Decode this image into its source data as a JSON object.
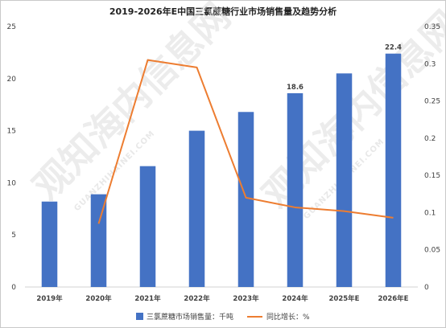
{
  "chart_data": {
    "type": "bar",
    "title": "2019-2026年E中国三氯蔗糖行业市场销售量及趋势分析",
    "categories": [
      "2019年",
      "2020年",
      "2021年",
      "2022年",
      "2023年",
      "2024年",
      "2025年E",
      "2026年E"
    ],
    "series": [
      {
        "name": "三氯蔗糖市场销售量：千吨",
        "type": "bar",
        "axis": "left",
        "color": "#4472c4",
        "values": [
          8.2,
          8.9,
          11.6,
          15.0,
          16.8,
          18.6,
          20.5,
          22.4
        ]
      },
      {
        "name": "同比增长：%",
        "type": "line",
        "axis": "right",
        "color": "#ed7d31",
        "values": [
          null,
          0.085,
          0.305,
          0.295,
          0.12,
          0.107,
          0.102,
          0.093
        ]
      }
    ],
    "data_labels": [
      {
        "index": 5,
        "text": "18.6"
      },
      {
        "index": 7,
        "text": "22.4"
      }
    ],
    "y_left": {
      "min": 0,
      "max": 25,
      "ticks": [
        "0",
        "5",
        "10",
        "15",
        "20",
        "25"
      ]
    },
    "y_right": {
      "min": 0,
      "max": 0.35,
      "ticks": [
        "0",
        "0.05",
        "0.1",
        "0.15",
        "0.2",
        "0.25",
        "0.3",
        "0.35"
      ]
    },
    "legend_position": "bottom",
    "grid": false
  },
  "watermark": {
    "text": "观知海内信息网",
    "subtext": "GUANZHIHAINEI.COM"
  }
}
